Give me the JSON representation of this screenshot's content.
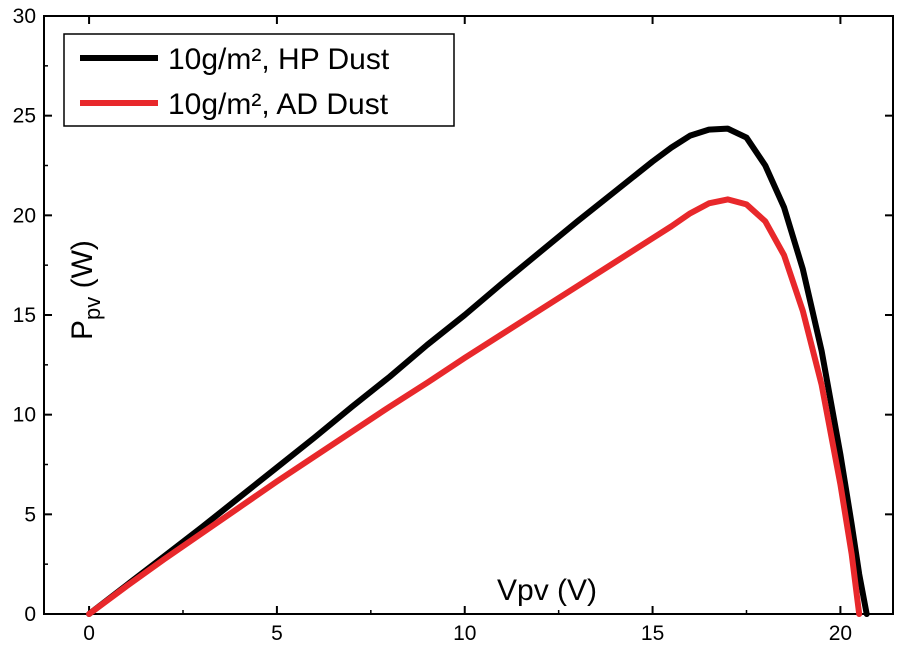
{
  "chart_data": {
    "type": "line",
    "title": "",
    "xlabel": "Vpv (V)",
    "ylabel_main": "P",
    "ylabel_sub": "pv",
    "ylabel_unit": " (W)",
    "xlim": [
      -1.2,
      21.4
    ],
    "ylim": [
      0,
      30
    ],
    "xticks": [
      0,
      5,
      10,
      15,
      20
    ],
    "yticks": [
      0,
      5,
      10,
      15,
      20,
      25,
      30
    ],
    "grid": false,
    "legend_position": "top-left",
    "series": [
      {
        "name": "10g/m², HP Dust",
        "color": "#000000",
        "x": [
          0,
          1,
          2,
          3,
          4,
          5,
          6,
          7,
          8,
          9,
          10,
          11,
          12,
          13,
          14,
          15,
          15.5,
          16,
          16.5,
          17,
          17.5,
          18,
          18.5,
          19,
          19.5,
          20,
          20.3,
          20.5,
          20.7
        ],
        "y": [
          0,
          1.45,
          2.9,
          4.35,
          5.85,
          7.35,
          8.85,
          10.4,
          11.9,
          13.5,
          15.0,
          16.6,
          18.15,
          19.7,
          21.2,
          22.7,
          23.4,
          24.0,
          24.3,
          24.35,
          23.9,
          22.5,
          20.4,
          17.3,
          13.2,
          8.0,
          4.5,
          2.0,
          0
        ]
      },
      {
        "name": "10g/m², AD Dust",
        "color": "#e8282b",
        "x": [
          0,
          1,
          2,
          3,
          4,
          5,
          6,
          7,
          8,
          9,
          10,
          11,
          12,
          13,
          14,
          15,
          15.5,
          16,
          16.5,
          17,
          17.5,
          18,
          18.5,
          19,
          19.5,
          20,
          20.3,
          20.5
        ],
        "y": [
          0,
          1.4,
          2.75,
          4.05,
          5.35,
          6.65,
          7.9,
          9.15,
          10.4,
          11.6,
          12.85,
          14.05,
          15.25,
          16.45,
          17.65,
          18.85,
          19.45,
          20.1,
          20.6,
          20.8,
          20.55,
          19.7,
          18.0,
          15.2,
          11.5,
          6.5,
          3.0,
          0
        ]
      }
    ]
  }
}
